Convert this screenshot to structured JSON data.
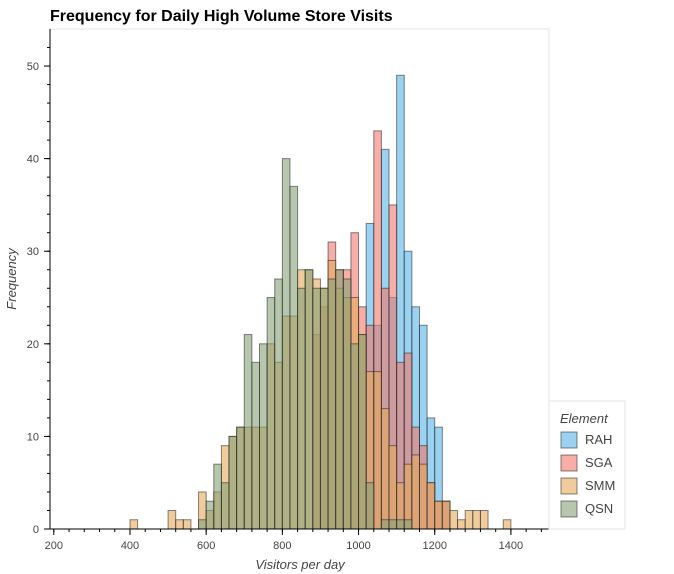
{
  "chart_data": {
    "type": "histogram",
    "title": "Frequency for Daily High Volume Store Visits",
    "xlabel": "Visitors per day",
    "ylabel": "Frequency",
    "xlim": [
      190,
      1500
    ],
    "ylim": [
      0,
      54
    ],
    "x_ticks": [
      200,
      400,
      600,
      800,
      1000,
      1200,
      1400
    ],
    "y_ticks": [
      0,
      10,
      20,
      30,
      40,
      50
    ],
    "bin_width": 20,
    "legend": {
      "title": "Element",
      "position": "right"
    },
    "series": [
      {
        "name": "RAH",
        "color": "#56B4E9",
        "bins": [
          [
            1020,
            33
          ],
          [
            1040,
            22
          ],
          [
            1060,
            41
          ],
          [
            1080,
            25
          ],
          [
            1100,
            49
          ],
          [
            1120,
            30
          ],
          [
            1140,
            24
          ],
          [
            1160,
            22
          ],
          [
            1180,
            12
          ],
          [
            1200,
            11
          ],
          [
            1220,
            3
          ]
        ]
      },
      {
        "name": "SGA",
        "color": "#F0786B",
        "bins": [
          [
            880,
            21
          ],
          [
            900,
            24
          ],
          [
            920,
            31
          ],
          [
            940,
            28
          ],
          [
            960,
            28
          ],
          [
            980,
            32
          ],
          [
            1000,
            24
          ],
          [
            1020,
            22
          ],
          [
            1040,
            43
          ],
          [
            1060,
            26
          ],
          [
            1080,
            35
          ],
          [
            1100,
            18
          ],
          [
            1120,
            19
          ],
          [
            1140,
            11
          ],
          [
            1160,
            9
          ],
          [
            1180,
            5
          ],
          [
            1200,
            3
          ],
          [
            1220,
            3
          ]
        ]
      },
      {
        "name": "SMM",
        "color": "#E6A85A",
        "bins": [
          [
            400,
            1
          ],
          [
            500,
            2
          ],
          [
            520,
            1
          ],
          [
            540,
            1
          ],
          [
            580,
            4
          ],
          [
            600,
            2
          ],
          [
            620,
            4
          ],
          [
            640,
            9
          ],
          [
            660,
            10
          ],
          [
            680,
            11
          ],
          [
            700,
            11
          ],
          [
            720,
            11
          ],
          [
            740,
            11
          ],
          [
            760,
            20
          ],
          [
            780,
            18
          ],
          [
            800,
            23
          ],
          [
            820,
            23
          ],
          [
            840,
            28
          ],
          [
            860,
            28
          ],
          [
            880,
            27
          ],
          [
            900,
            26
          ],
          [
            920,
            29
          ],
          [
            940,
            26
          ],
          [
            960,
            25
          ],
          [
            980,
            25
          ],
          [
            1000,
            21
          ],
          [
            1020,
            17
          ],
          [
            1040,
            17
          ],
          [
            1060,
            13
          ],
          [
            1080,
            9
          ],
          [
            1100,
            5
          ],
          [
            1120,
            7
          ],
          [
            1140,
            8
          ],
          [
            1160,
            7
          ],
          [
            1180,
            5
          ],
          [
            1200,
            3
          ],
          [
            1220,
            3
          ],
          [
            1240,
            2
          ],
          [
            1260,
            1
          ],
          [
            1280,
            2
          ],
          [
            1300,
            2
          ],
          [
            1320,
            2
          ],
          [
            1380,
            1
          ]
        ]
      },
      {
        "name": "QSN",
        "color": "#86A176",
        "bins": [
          [
            580,
            1
          ],
          [
            600,
            3
          ],
          [
            620,
            7
          ],
          [
            640,
            5
          ],
          [
            660,
            10
          ],
          [
            680,
            11
          ],
          [
            700,
            21
          ],
          [
            720,
            18
          ],
          [
            740,
            20
          ],
          [
            760,
            25
          ],
          [
            780,
            27
          ],
          [
            800,
            40
          ],
          [
            820,
            37
          ],
          [
            840,
            26
          ],
          [
            860,
            28
          ],
          [
            880,
            26
          ],
          [
            900,
            26
          ],
          [
            920,
            27
          ],
          [
            940,
            28
          ],
          [
            960,
            27
          ],
          [
            980,
            20
          ],
          [
            1000,
            21
          ],
          [
            1020,
            5
          ],
          [
            1060,
            1
          ],
          [
            1080,
            1
          ],
          [
            1100,
            1
          ],
          [
            1120,
            1
          ]
        ]
      }
    ]
  }
}
